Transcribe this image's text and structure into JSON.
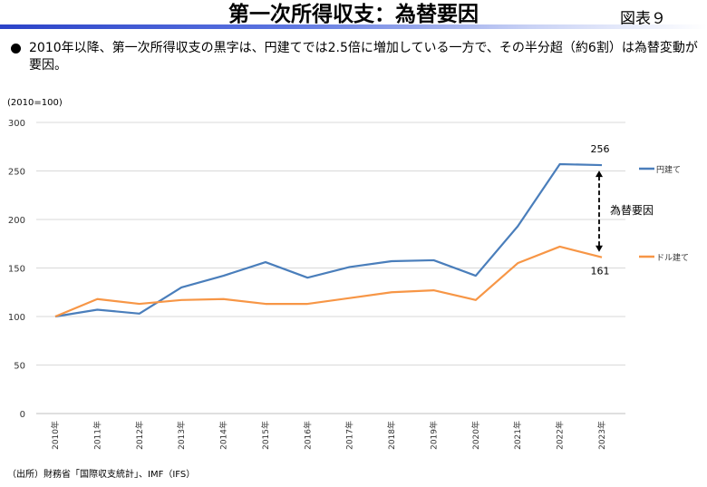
{
  "header": {
    "title": "第一次所得収支：為替要因",
    "figure_label": "図表９"
  },
  "bullet": "2010年以降、第一次所得収支の黒字は、円建てでは2.5倍に増加している一方で、その半分超（約6割）は為替変動が要因。",
  "footer": {
    "source": "（出所）財務省「国際収支統計」、IMF（IFS）"
  },
  "chart_data": {
    "type": "line",
    "title": "",
    "ylabel": "(2010=100)",
    "xlabel": "",
    "ylim": [
      0,
      300
    ],
    "yticks": [
      0,
      50,
      100,
      150,
      200,
      250,
      300
    ],
    "grid": true,
    "legend_placement": "right",
    "categories": [
      "2010年",
      "2011年",
      "2012年",
      "2013年",
      "2014年",
      "2015年",
      "2016年",
      "2017年",
      "2018年",
      "2019年",
      "2020年",
      "2021年",
      "2022年",
      "2023年"
    ],
    "series": [
      {
        "name": "円建て",
        "color": "#4a7ebb",
        "values": [
          100,
          107,
          103,
          130,
          142,
          156,
          140,
          151,
          157,
          158,
          142,
          193,
          257,
          256
        ]
      },
      {
        "name": "ドル建て",
        "color": "#f79646",
        "values": [
          100,
          118,
          113,
          117,
          118,
          113,
          113,
          119,
          125,
          127,
          117,
          155,
          172,
          161
        ]
      }
    ],
    "annotations": {
      "yen_end_label": "256",
      "dollar_end_label": "161",
      "arrow_label": "為替要因"
    }
  }
}
